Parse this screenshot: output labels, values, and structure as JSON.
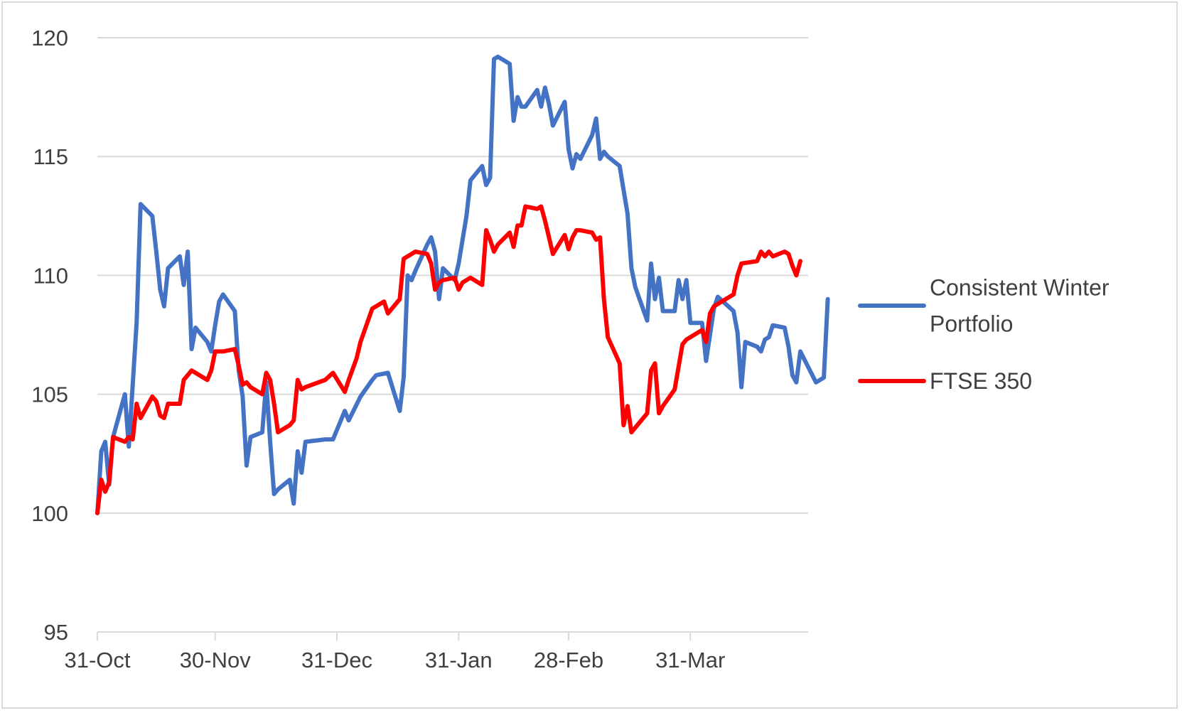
{
  "chart_data": {
    "type": "line",
    "title": "",
    "xlabel": "",
    "ylabel": "",
    "ylim": [
      95,
      120
    ],
    "y_ticks": [
      "95",
      "100",
      "105",
      "110",
      "115",
      "120"
    ],
    "x_domain": [
      "2022-10-31",
      "2023-04-30"
    ],
    "x_ticks": [
      {
        "date": "2022-10-31",
        "label": "31-Oct"
      },
      {
        "date": "2022-11-30",
        "label": "30-Nov"
      },
      {
        "date": "2022-12-31",
        "label": "31-Dec"
      },
      {
        "date": "2023-01-31",
        "label": "31-Jan"
      },
      {
        "date": "2023-02-28",
        "label": "28-Feb"
      },
      {
        "date": "2023-03-31",
        "label": "31-Mar"
      }
    ],
    "grid": "horizontal",
    "legend_position": "right",
    "series": [
      {
        "name": "Consistent Winter Portfolio",
        "legend_lines": [
          "Consistent Winter",
          "Portfolio"
        ],
        "color": "#4472C4",
        "points": [
          [
            "2022-10-31",
            100.0
          ],
          [
            "2022-11-01",
            102.6
          ],
          [
            "2022-11-02",
            103.0
          ],
          [
            "2022-11-03",
            101.2
          ],
          [
            "2022-11-04",
            103.2
          ],
          [
            "2022-11-07",
            105.0
          ],
          [
            "2022-11-08",
            102.8
          ],
          [
            "2022-11-10",
            108.0
          ],
          [
            "2022-11-11",
            113.0
          ],
          [
            "2022-11-14",
            112.5
          ],
          [
            "2022-11-15",
            111.0
          ],
          [
            "2022-11-16",
            109.4
          ],
          [
            "2022-11-17",
            108.7
          ],
          [
            "2022-11-18",
            110.3
          ],
          [
            "2022-11-21",
            110.8
          ],
          [
            "2022-11-22",
            109.6
          ],
          [
            "2022-11-23",
            111.0
          ],
          [
            "2022-11-24",
            106.9
          ],
          [
            "2022-11-25",
            107.8
          ],
          [
            "2022-11-28",
            107.2
          ],
          [
            "2022-11-29",
            106.8
          ],
          [
            "2022-11-30",
            107.9
          ],
          [
            "2022-12-01",
            108.9
          ],
          [
            "2022-12-02",
            109.2
          ],
          [
            "2022-12-05",
            108.5
          ],
          [
            "2022-12-06",
            106.0
          ],
          [
            "2022-12-07",
            104.9
          ],
          [
            "2022-12-08",
            102.0
          ],
          [
            "2022-12-09",
            103.2
          ],
          [
            "2022-12-12",
            103.4
          ],
          [
            "2022-12-13",
            105.5
          ],
          [
            "2022-12-14",
            103.0
          ],
          [
            "2022-12-15",
            100.8
          ],
          [
            "2022-12-16",
            101.0
          ],
          [
            "2022-12-19",
            101.4
          ],
          [
            "2022-12-20",
            100.4
          ],
          [
            "2022-12-21",
            102.6
          ],
          [
            "2022-12-22",
            101.7
          ],
          [
            "2022-12-23",
            103.0
          ],
          [
            "2022-12-28",
            103.1
          ],
          [
            "2022-12-30",
            103.1
          ],
          [
            "2023-01-02",
            104.3
          ],
          [
            "2023-01-03",
            103.9
          ],
          [
            "2023-01-06",
            104.9
          ],
          [
            "2023-01-09",
            105.6
          ],
          [
            "2023-01-10",
            105.8
          ],
          [
            "2023-01-13",
            105.9
          ],
          [
            "2023-01-16",
            104.3
          ],
          [
            "2023-01-17",
            105.7
          ],
          [
            "2023-01-18",
            110.0
          ],
          [
            "2023-01-19",
            109.8
          ],
          [
            "2023-01-20",
            110.2
          ],
          [
            "2023-01-23",
            111.3
          ],
          [
            "2023-01-24",
            111.6
          ],
          [
            "2023-01-25",
            111.0
          ],
          [
            "2023-01-26",
            109.0
          ],
          [
            "2023-01-27",
            110.3
          ],
          [
            "2023-01-30",
            109.8
          ],
          [
            "2023-01-31",
            110.5
          ],
          [
            "2023-02-02",
            112.5
          ],
          [
            "2023-02-03",
            114.0
          ],
          [
            "2023-02-06",
            114.6
          ],
          [
            "2023-02-07",
            113.8
          ],
          [
            "2023-02-08",
            114.1
          ],
          [
            "2023-02-09",
            119.1
          ],
          [
            "2023-02-10",
            119.2
          ],
          [
            "2023-02-13",
            118.9
          ],
          [
            "2023-02-14",
            116.5
          ],
          [
            "2023-02-15",
            117.5
          ],
          [
            "2023-02-16",
            117.1
          ],
          [
            "2023-02-17",
            117.1
          ],
          [
            "2023-02-20",
            117.8
          ],
          [
            "2023-02-21",
            117.1
          ],
          [
            "2023-02-22",
            117.9
          ],
          [
            "2023-02-23",
            117.2
          ],
          [
            "2023-02-24",
            116.3
          ],
          [
            "2023-02-27",
            117.3
          ],
          [
            "2023-02-28",
            115.3
          ],
          [
            "2023-03-01",
            114.5
          ],
          [
            "2023-03-02",
            115.1
          ],
          [
            "2023-03-03",
            114.9
          ],
          [
            "2023-03-06",
            115.9
          ],
          [
            "2023-03-07",
            116.6
          ],
          [
            "2023-03-08",
            114.9
          ],
          [
            "2023-03-09",
            115.2
          ],
          [
            "2023-03-10",
            115.0
          ],
          [
            "2023-03-13",
            114.6
          ],
          [
            "2023-03-14",
            113.6
          ],
          [
            "2023-03-15",
            112.6
          ],
          [
            "2023-03-16",
            110.3
          ],
          [
            "2023-03-17",
            109.5
          ],
          [
            "2023-03-20",
            108.1
          ],
          [
            "2023-03-21",
            110.5
          ],
          [
            "2023-03-22",
            109.0
          ],
          [
            "2023-03-23",
            109.9
          ],
          [
            "2023-03-24",
            108.5
          ],
          [
            "2023-03-27",
            108.5
          ],
          [
            "2023-03-28",
            109.8
          ],
          [
            "2023-03-29",
            109.0
          ],
          [
            "2023-03-30",
            109.8
          ],
          [
            "2023-03-31",
            108.0
          ],
          [
            "2023-04-03",
            108.0
          ],
          [
            "2023-04-04",
            106.4
          ],
          [
            "2023-04-05",
            107.5
          ],
          [
            "2023-04-06",
            108.6
          ],
          [
            "2023-04-07",
            109.1
          ],
          [
            "2023-04-11",
            108.5
          ],
          [
            "2023-04-12",
            107.6
          ],
          [
            "2023-04-13",
            105.3
          ],
          [
            "2023-04-14",
            107.2
          ],
          [
            "2023-04-17",
            107.0
          ],
          [
            "2023-04-18",
            106.8
          ],
          [
            "2023-04-19",
            107.3
          ],
          [
            "2023-04-20",
            107.4
          ],
          [
            "2023-04-21",
            107.9
          ],
          [
            "2023-04-24",
            107.8
          ],
          [
            "2023-04-25",
            107.0
          ],
          [
            "2023-04-26",
            105.8
          ],
          [
            "2023-04-27",
            105.5
          ],
          [
            "2023-04-28",
            106.8
          ],
          [
            "2023-05-02",
            105.5
          ],
          [
            "2023-05-04",
            105.7
          ],
          [
            "2023-05-05",
            109.0
          ]
        ]
      },
      {
        "name": "FTSE 350",
        "legend_lines": [
          "FTSE 350"
        ],
        "color": "#FF0000",
        "points": [
          [
            "2022-10-31",
            100.0
          ],
          [
            "2022-11-01",
            101.4
          ],
          [
            "2022-11-02",
            100.9
          ],
          [
            "2022-11-03",
            101.3
          ],
          [
            "2022-11-04",
            103.2
          ],
          [
            "2022-11-07",
            103.0
          ],
          [
            "2022-11-08",
            103.2
          ],
          [
            "2022-11-09",
            103.1
          ],
          [
            "2022-11-10",
            104.6
          ],
          [
            "2022-11-11",
            104.0
          ],
          [
            "2022-11-14",
            104.9
          ],
          [
            "2022-11-15",
            104.7
          ],
          [
            "2022-11-16",
            104.1
          ],
          [
            "2022-11-17",
            104.0
          ],
          [
            "2022-11-18",
            104.6
          ],
          [
            "2022-11-21",
            104.6
          ],
          [
            "2022-11-22",
            105.6
          ],
          [
            "2022-11-23",
            105.8
          ],
          [
            "2022-11-24",
            106.0
          ],
          [
            "2022-11-25",
            105.9
          ],
          [
            "2022-11-28",
            105.6
          ],
          [
            "2022-11-29",
            106.0
          ],
          [
            "2022-11-30",
            106.8
          ],
          [
            "2022-12-02",
            106.8
          ],
          [
            "2022-12-05",
            106.9
          ],
          [
            "2022-12-06",
            106.2
          ],
          [
            "2022-12-07",
            105.4
          ],
          [
            "2022-12-08",
            105.5
          ],
          [
            "2022-12-09",
            105.3
          ],
          [
            "2022-12-12",
            105.0
          ],
          [
            "2022-12-13",
            105.9
          ],
          [
            "2022-12-14",
            105.6
          ],
          [
            "2022-12-15",
            104.6
          ],
          [
            "2022-12-16",
            103.4
          ],
          [
            "2022-12-19",
            103.7
          ],
          [
            "2022-12-20",
            103.9
          ],
          [
            "2022-12-21",
            105.6
          ],
          [
            "2022-12-22",
            105.2
          ],
          [
            "2022-12-23",
            105.3
          ],
          [
            "2022-12-28",
            105.6
          ],
          [
            "2022-12-30",
            105.9
          ],
          [
            "2023-01-02",
            105.1
          ],
          [
            "2023-01-03",
            105.6
          ],
          [
            "2023-01-05",
            106.5
          ],
          [
            "2023-01-06",
            107.2
          ],
          [
            "2023-01-09",
            108.6
          ],
          [
            "2023-01-12",
            108.9
          ],
          [
            "2023-01-13",
            108.4
          ],
          [
            "2023-01-16",
            109.0
          ],
          [
            "2023-01-17",
            110.7
          ],
          [
            "2023-01-19",
            110.9
          ],
          [
            "2023-01-20",
            111.0
          ],
          [
            "2023-01-23",
            110.9
          ],
          [
            "2023-01-24",
            110.5
          ],
          [
            "2023-01-25",
            109.4
          ],
          [
            "2023-01-26",
            109.7
          ],
          [
            "2023-01-27",
            109.8
          ],
          [
            "2023-01-30",
            109.9
          ],
          [
            "2023-01-31",
            109.4
          ],
          [
            "2023-02-01",
            109.7
          ],
          [
            "2023-02-03",
            109.9
          ],
          [
            "2023-02-06",
            109.6
          ],
          [
            "2023-02-07",
            111.9
          ],
          [
            "2023-02-08",
            111.5
          ],
          [
            "2023-02-09",
            111.0
          ],
          [
            "2023-02-10",
            111.3
          ],
          [
            "2023-02-13",
            111.8
          ],
          [
            "2023-02-14",
            111.2
          ],
          [
            "2023-02-15",
            112.1
          ],
          [
            "2023-02-16",
            112.1
          ],
          [
            "2023-02-17",
            112.9
          ],
          [
            "2023-02-20",
            112.8
          ],
          [
            "2023-02-21",
            112.9
          ],
          [
            "2023-02-22",
            112.3
          ],
          [
            "2023-02-23",
            111.6
          ],
          [
            "2023-02-24",
            110.9
          ],
          [
            "2023-02-27",
            111.7
          ],
          [
            "2023-02-28",
            111.1
          ],
          [
            "2023-03-01",
            111.6
          ],
          [
            "2023-03-02",
            111.9
          ],
          [
            "2023-03-03",
            111.9
          ],
          [
            "2023-03-06",
            111.8
          ],
          [
            "2023-03-07",
            111.5
          ],
          [
            "2023-03-08",
            111.6
          ],
          [
            "2023-03-09",
            109.0
          ],
          [
            "2023-03-10",
            107.4
          ],
          [
            "2023-03-13",
            106.3
          ],
          [
            "2023-03-14",
            103.7
          ],
          [
            "2023-03-15",
            104.5
          ],
          [
            "2023-03-16",
            103.4
          ],
          [
            "2023-03-20",
            104.2
          ],
          [
            "2023-03-21",
            106.0
          ],
          [
            "2023-03-22",
            106.3
          ],
          [
            "2023-03-23",
            104.2
          ],
          [
            "2023-03-24",
            104.5
          ],
          [
            "2023-03-27",
            105.2
          ],
          [
            "2023-03-29",
            107.1
          ],
          [
            "2023-03-30",
            107.3
          ],
          [
            "2023-04-03",
            107.7
          ],
          [
            "2023-04-04",
            107.2
          ],
          [
            "2023-04-05",
            108.4
          ],
          [
            "2023-04-06",
            108.7
          ],
          [
            "2023-04-11",
            109.2
          ],
          [
            "2023-04-12",
            110.0
          ],
          [
            "2023-04-13",
            110.5
          ],
          [
            "2023-04-17",
            110.6
          ],
          [
            "2023-04-18",
            111.0
          ],
          [
            "2023-04-19",
            110.8
          ],
          [
            "2023-04-20",
            111.0
          ],
          [
            "2023-04-21",
            110.8
          ],
          [
            "2023-04-24",
            111.0
          ],
          [
            "2023-04-25",
            110.9
          ],
          [
            "2023-04-26",
            110.4
          ],
          [
            "2023-04-27",
            110.0
          ],
          [
            "2023-04-28",
            110.6
          ]
        ]
      }
    ]
  }
}
